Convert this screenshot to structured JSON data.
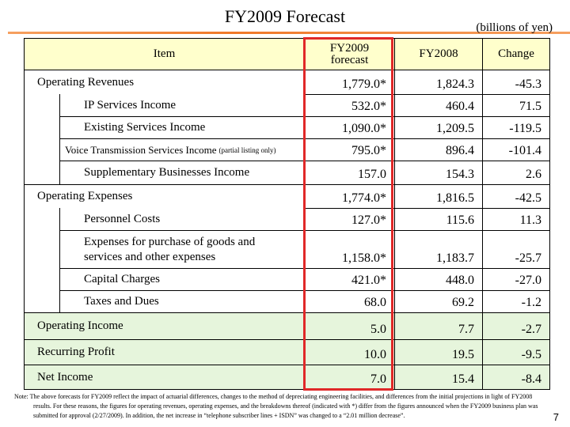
{
  "title": "FY2009 Forecast",
  "unit": "(billions of yen)",
  "table": {
    "header": [
      "Item",
      "FY2009 forecast",
      "FY2008",
      "Change"
    ],
    "rows": [
      {
        "item": "Operating Revenues",
        "forecast": "1,779.0*",
        "fy2008": "1,824.3",
        "change": "-45.3"
      },
      {
        "item": "IP Services Income",
        "forecast": "532.0*",
        "fy2008": "460.4",
        "change": "71.5"
      },
      {
        "item": "Existing Services Income",
        "forecast": "1,090.0*",
        "fy2008": "1,209.5",
        "change": "-119.5"
      },
      {
        "item": "Voice Transmission Services Income",
        "item_note": "(partial listing only)",
        "forecast": "795.0*",
        "fy2008": "896.4",
        "change": "-101.4"
      },
      {
        "item": "Supplementary Businesses Income",
        "forecast": "157.0",
        "fy2008": "154.3",
        "change": "2.6"
      },
      {
        "item": "Operating Expenses",
        "forecast": "1,774.0*",
        "fy2008": "1,816.5",
        "change": "-42.5"
      },
      {
        "item": "Personnel Costs",
        "forecast": "127.0*",
        "fy2008": "115.6",
        "change": "11.3"
      },
      {
        "item": "Expenses for purchase of goods and services and other expenses",
        "forecast": "1,158.0*",
        "fy2008": "1,183.7",
        "change": "-25.7"
      },
      {
        "item": "Capital Charges",
        "forecast": "421.0*",
        "fy2008": "448.0",
        "change": "-27.0"
      },
      {
        "item": "Taxes and Dues",
        "forecast": "68.0",
        "fy2008": "69.2",
        "change": "-1.2"
      },
      {
        "item": "Operating Income",
        "forecast": "5.0",
        "fy2008": "7.7",
        "change": "-2.7"
      },
      {
        "item": "Recurring Profit",
        "forecast": "10.0",
        "fy2008": "19.5",
        "change": "-9.5"
      },
      {
        "item": "Net Income",
        "forecast": "7.0",
        "fy2008": "15.4",
        "change": "-8.4"
      }
    ]
  },
  "note": "Note: The above forecasts for FY2009 reflect the impact of actuarial differences, changes to the method of depreciating engineering facilities, and differences from the initial projections in light of FY2008 results.  For these reasons, the figures for operating revenues, operating expenses, and the breakdowns thereof (indicated with *) differ from the figures announced when the FY2009 business plan was submitted for approval (2/27/2009).  In addition, the net increase in “telephone subscriber lines + ISDN” was changed to a “2.01 million decrease”.",
  "page_number": "7"
}
